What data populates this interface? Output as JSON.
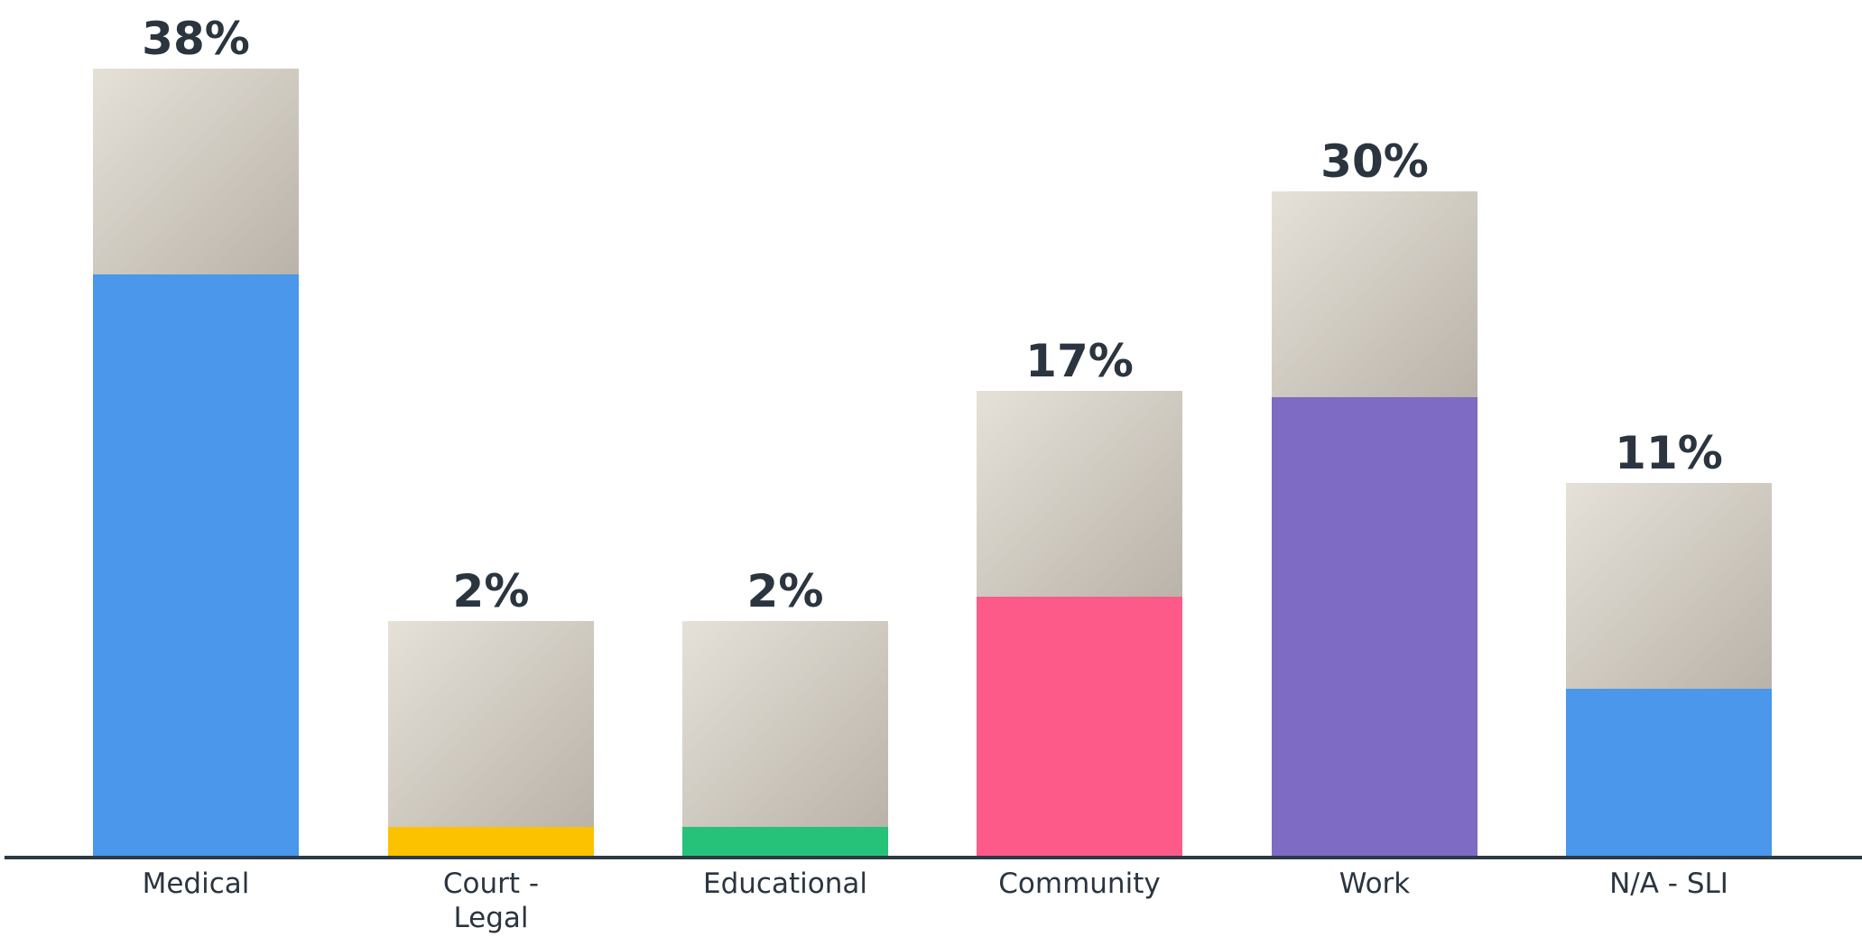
{
  "chart_data": {
    "type": "bar",
    "categories": [
      "Medical",
      "Court - Legal",
      "Educational",
      "Community",
      "Work",
      "N/A - SLI"
    ],
    "values": [
      38,
      2,
      2,
      17,
      30,
      11
    ],
    "value_labels": [
      "38%",
      "2%",
      "2%",
      "17%",
      "30%",
      "11%"
    ],
    "colors": [
      "#4a97ec",
      "#fcc200",
      "#27c27a",
      "#fd5a8a",
      "#7d6bc4",
      "#4a97ec"
    ],
    "ylim": [
      0,
      55
    ]
  }
}
